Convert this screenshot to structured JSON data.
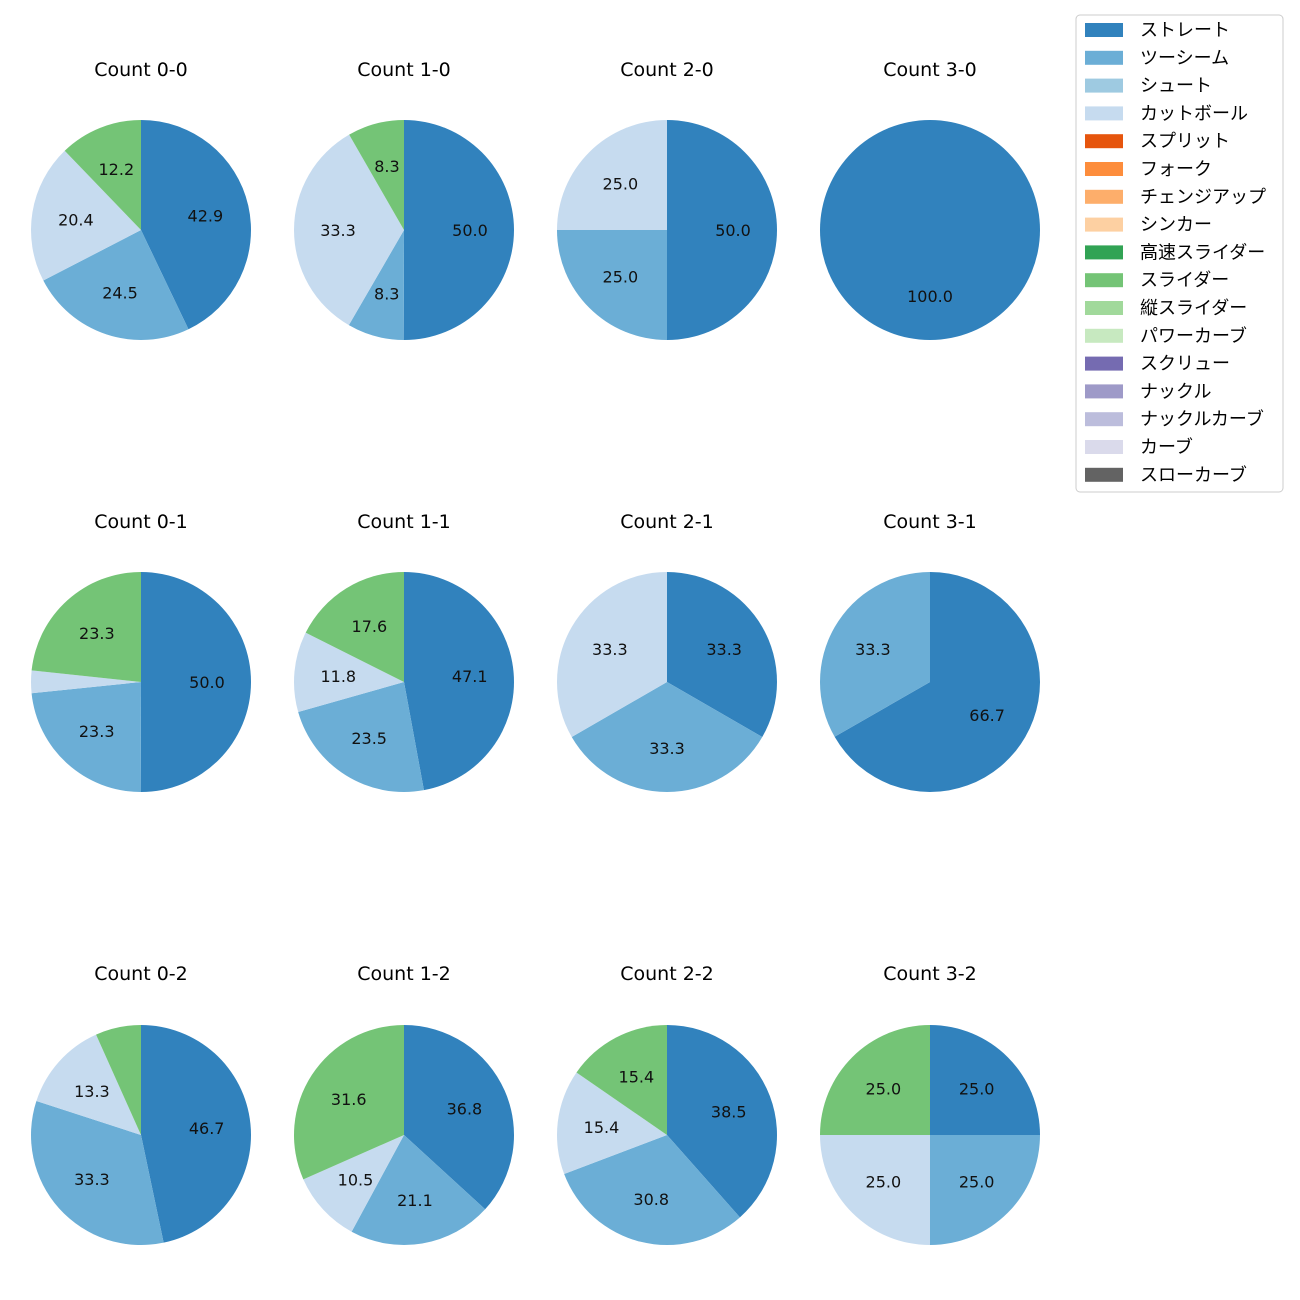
{
  "legend": {
    "items": [
      {
        "label": "ストレート",
        "color": "#3182bd"
      },
      {
        "label": "ツーシーム",
        "color": "#6baed6"
      },
      {
        "label": "シュート",
        "color": "#9ecae1"
      },
      {
        "label": "カットボール",
        "color": "#c6dbef"
      },
      {
        "label": "スプリット",
        "color": "#e6550d"
      },
      {
        "label": "フォーク",
        "color": "#fd8d3c"
      },
      {
        "label": "チェンジアップ",
        "color": "#fdae6b"
      },
      {
        "label": "シンカー",
        "color": "#fdd0a2"
      },
      {
        "label": "高速スライダー",
        "color": "#31a354"
      },
      {
        "label": "スライダー",
        "color": "#74c476"
      },
      {
        "label": "縦スライダー",
        "color": "#a1d99b"
      },
      {
        "label": "パワーカーブ",
        "color": "#c7e9c0"
      },
      {
        "label": "スクリュー",
        "color": "#756bb1"
      },
      {
        "label": "ナックル",
        "color": "#9e9ac8"
      },
      {
        "label": "ナックルカーブ",
        "color": "#bcbddc"
      },
      {
        "label": "カーブ",
        "color": "#dadaeb"
      },
      {
        "label": "スローカーブ",
        "color": "#636363"
      }
    ]
  },
  "chart_data": [
    {
      "type": "pie",
      "title": "Count 0-0",
      "slices": [
        {
          "category": "ストレート",
          "value": 42.9,
          "label": "42.9"
        },
        {
          "category": "ツーシーム",
          "value": 24.5,
          "label": "24.5"
        },
        {
          "category": "カットボール",
          "value": 20.4,
          "label": "20.4"
        },
        {
          "category": "スライダー",
          "value": 12.2,
          "label": "12.2"
        }
      ]
    },
    {
      "type": "pie",
      "title": "Count 1-0",
      "slices": [
        {
          "category": "ストレート",
          "value": 50.0,
          "label": "50.0"
        },
        {
          "category": "ツーシーム",
          "value": 8.3,
          "label": "8.3"
        },
        {
          "category": "カットボール",
          "value": 33.3,
          "label": "33.3"
        },
        {
          "category": "スライダー",
          "value": 8.3,
          "label": "8.3"
        }
      ]
    },
    {
      "type": "pie",
      "title": "Count 2-0",
      "slices": [
        {
          "category": "ストレート",
          "value": 50.0,
          "label": "50.0"
        },
        {
          "category": "ツーシーム",
          "value": 25.0,
          "label": "25.0"
        },
        {
          "category": "カットボール",
          "value": 25.0,
          "label": "25.0"
        }
      ]
    },
    {
      "type": "pie",
      "title": "Count 3-0",
      "slices": [
        {
          "category": "ストレート",
          "value": 100.0,
          "label": "100.0"
        }
      ]
    },
    {
      "type": "pie",
      "title": "Count 0-1",
      "slices": [
        {
          "category": "ストレート",
          "value": 50.0,
          "label": "50.0"
        },
        {
          "category": "ツーシーム",
          "value": 23.3,
          "label": "23.3"
        },
        {
          "category": "カットボール",
          "value": 3.3,
          "label": ""
        },
        {
          "category": "スライダー",
          "value": 23.3,
          "label": "23.3"
        }
      ]
    },
    {
      "type": "pie",
      "title": "Count 1-1",
      "slices": [
        {
          "category": "ストレート",
          "value": 47.1,
          "label": "47.1"
        },
        {
          "category": "ツーシーム",
          "value": 23.5,
          "label": "23.5"
        },
        {
          "category": "カットボール",
          "value": 11.8,
          "label": "11.8"
        },
        {
          "category": "スライダー",
          "value": 17.6,
          "label": "17.6"
        }
      ]
    },
    {
      "type": "pie",
      "title": "Count 2-1",
      "slices": [
        {
          "category": "ストレート",
          "value": 33.3,
          "label": "33.3"
        },
        {
          "category": "ツーシーム",
          "value": 33.3,
          "label": "33.3"
        },
        {
          "category": "カットボール",
          "value": 33.3,
          "label": "33.3"
        }
      ]
    },
    {
      "type": "pie",
      "title": "Count 3-1",
      "slices": [
        {
          "category": "ストレート",
          "value": 66.7,
          "label": "66.7"
        },
        {
          "category": "ツーシーム",
          "value": 33.3,
          "label": "33.3"
        }
      ]
    },
    {
      "type": "pie",
      "title": "Count 0-2",
      "slices": [
        {
          "category": "ストレート",
          "value": 46.7,
          "label": "46.7"
        },
        {
          "category": "ツーシーム",
          "value": 33.3,
          "label": "33.3"
        },
        {
          "category": "カットボール",
          "value": 13.3,
          "label": "13.3"
        },
        {
          "category": "スライダー",
          "value": 6.7,
          "label": ""
        }
      ]
    },
    {
      "type": "pie",
      "title": "Count 1-2",
      "slices": [
        {
          "category": "ストレート",
          "value": 36.8,
          "label": "36.8"
        },
        {
          "category": "ツーシーム",
          "value": 21.1,
          "label": "21.1"
        },
        {
          "category": "カットボール",
          "value": 10.5,
          "label": "10.5"
        },
        {
          "category": "スライダー",
          "value": 31.6,
          "label": "31.6"
        }
      ]
    },
    {
      "type": "pie",
      "title": "Count 2-2",
      "slices": [
        {
          "category": "ストレート",
          "value": 38.5,
          "label": "38.5"
        },
        {
          "category": "ツーシーム",
          "value": 30.8,
          "label": "30.8"
        },
        {
          "category": "カットボール",
          "value": 15.4,
          "label": "15.4"
        },
        {
          "category": "スライダー",
          "value": 15.4,
          "label": "15.4"
        }
      ]
    },
    {
      "type": "pie",
      "title": "Count 3-2",
      "slices": [
        {
          "category": "ストレート",
          "value": 25.0,
          "label": "25.0"
        },
        {
          "category": "ツーシーム",
          "value": 25.0,
          "label": "25.0"
        },
        {
          "category": "カットボール",
          "value": 25.0,
          "label": "25.0"
        },
        {
          "category": "スライダー",
          "value": 25.0,
          "label": "25.0"
        }
      ]
    }
  ]
}
